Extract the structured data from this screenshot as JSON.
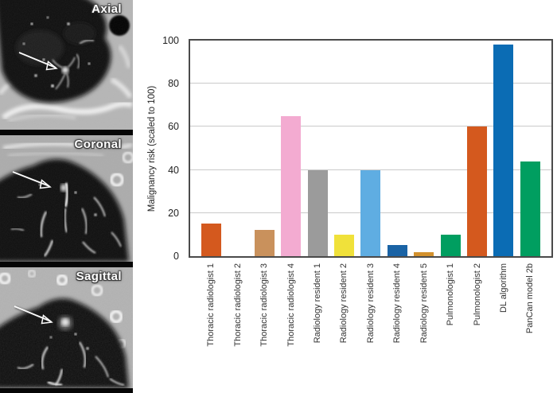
{
  "ct_panels": [
    {
      "label": "Axial"
    },
    {
      "label": "Coronal"
    },
    {
      "label": "Sagittal"
    }
  ],
  "chart_data": {
    "type": "bar",
    "title": "",
    "xlabel": "",
    "ylabel": "Malignancy risk (scaled to 100)",
    "ylim": [
      0,
      100
    ],
    "yticks": [
      0,
      20,
      40,
      60,
      80,
      100
    ],
    "grid": true,
    "legend_position": "none",
    "categories": [
      "Thoracic radiologist 1",
      "Thoracic radiologist 2",
      "Thoracic radiologist 3",
      "Thoracic radiologist 4",
      "Radiology resident 1",
      "Radiology resident 2",
      "Radiology resident 3",
      "Radiology resident 4",
      "Radiology resident 5",
      "Pulmonologist 1",
      "Pulmonologist 2",
      "DL algorithm",
      "PanCan model 2b"
    ],
    "values": [
      15,
      0,
      12,
      65,
      40,
      10,
      40,
      5,
      2,
      10,
      60,
      98,
      44
    ],
    "bar_colors": [
      "#d4591e",
      "#d4591e",
      "#c9915c",
      "#f3abd1",
      "#9b9b9b",
      "#f0e13a",
      "#5fade2",
      "#1a63a5",
      "#d3912d",
      "#009e60",
      "#d4591e",
      "#0b6cb4",
      "#009e60"
    ],
    "axis_border_color": "#4a4a4a",
    "gridline_color": "#cacaca"
  }
}
